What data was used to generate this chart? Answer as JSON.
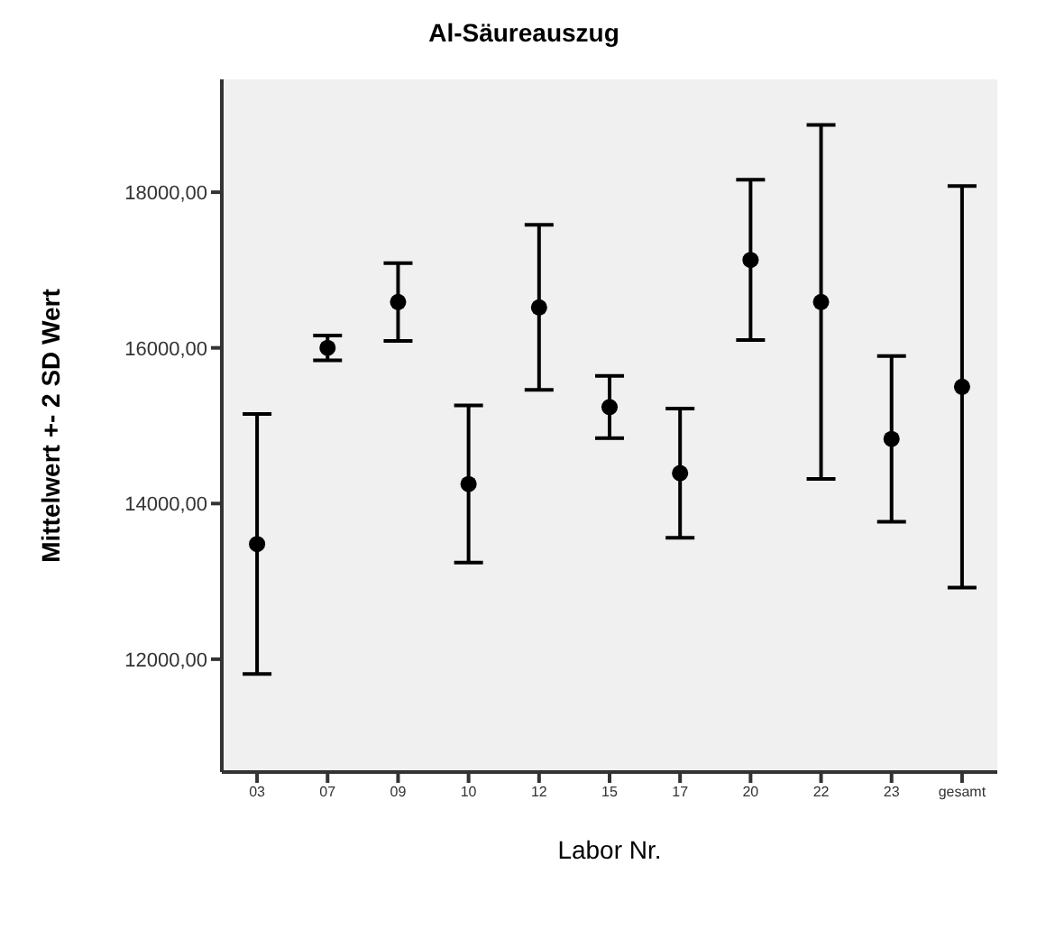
{
  "chart_data": {
    "type": "scatter",
    "title": "Al-Säureauszug",
    "xlabel": "Labor Nr.",
    "ylabel": "Mittelwert +- 2 SD Wert",
    "categories": [
      "03",
      "07",
      "09",
      "10",
      "12",
      "15",
      "17",
      "20",
      "22",
      "23",
      "gesamt"
    ],
    "series": [
      {
        "color": "#000000",
        "values": [
          13480,
          16000,
          16590,
          14250,
          16520,
          15240,
          14390,
          17130,
          16590,
          14830,
          15500
        ],
        "errors": [
          1670,
          160,
          500,
          1010,
          1060,
          400,
          830,
          1030,
          2275,
          1065,
          2580
        ]
      }
    ],
    "ylim": [
      10550,
      19450
    ],
    "yticks": [
      {
        "value": 12000,
        "label": "12000,00"
      },
      {
        "value": 14000,
        "label": "14000,00"
      },
      {
        "value": 16000,
        "label": "16000,00"
      },
      {
        "value": 18000,
        "label": "18000,00"
      }
    ],
    "grid": false,
    "marker": "circle"
  }
}
